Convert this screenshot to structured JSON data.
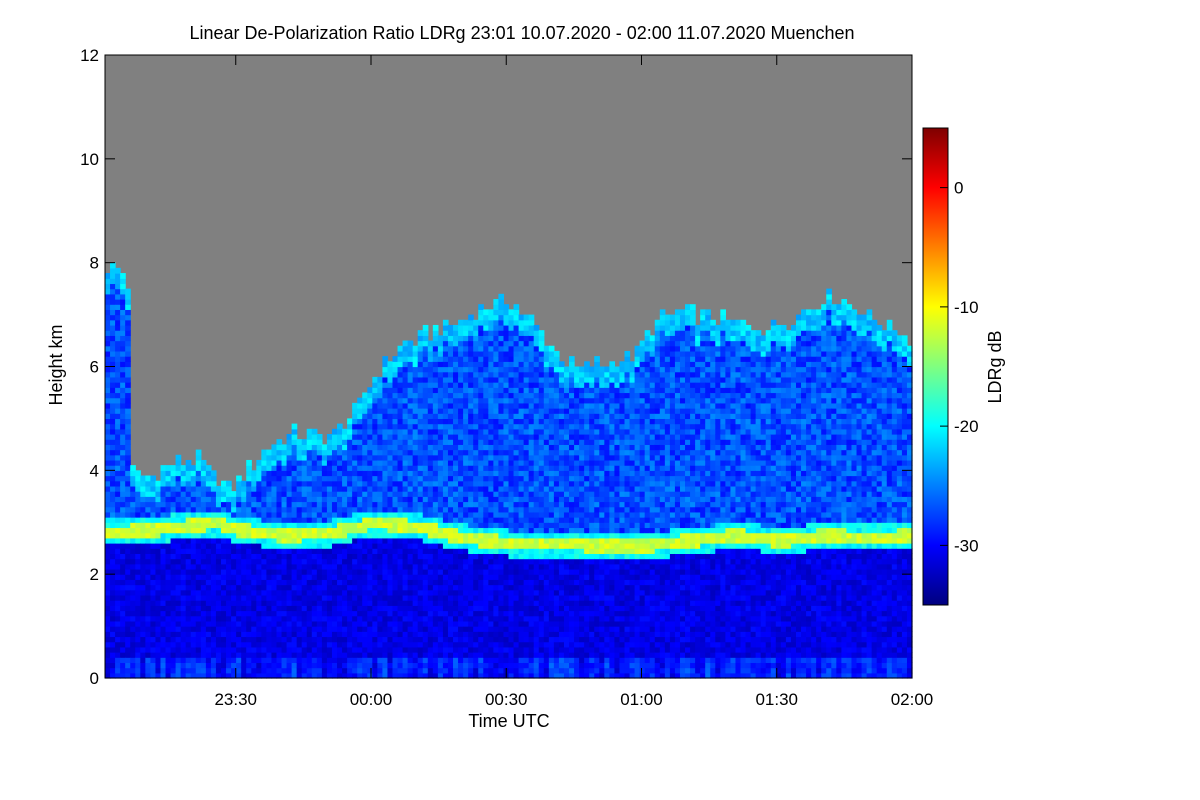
{
  "chart_data": {
    "type": "heatmap",
    "title": "Linear De-Polarization Ratio LDRg   23:01 10.07.2020 - 02:00 11.07.2020 Muenchen",
    "xlabel": "Time UTC",
    "ylabel": "Height km",
    "colorbar_label": "LDRg dB",
    "x_range": [
      "23:01",
      "02:00"
    ],
    "x_ticks": [
      "23:30",
      "00:00",
      "00:30",
      "01:00",
      "01:30",
      "02:00"
    ],
    "x_tick_minutes_from_start": [
      29,
      59,
      89,
      119,
      149,
      179
    ],
    "ylim": [
      0,
      12
    ],
    "y_ticks": [
      0,
      2,
      4,
      6,
      8,
      10,
      12
    ],
    "color_range": [
      -35,
      5
    ],
    "color_ticks": [
      0,
      -10,
      -20,
      -30
    ],
    "colormap": "jet",
    "no_signal_color": "#808080",
    "cloud_top_km": [
      [
        0,
        7.9
      ],
      [
        5,
        7.7
      ],
      [
        6,
        3.9
      ],
      [
        10,
        3.8
      ],
      [
        15,
        4.1
      ],
      [
        20,
        4.2
      ],
      [
        25,
        3.8
      ],
      [
        28,
        3.6
      ],
      [
        32,
        4.0
      ],
      [
        36,
        4.4
      ],
      [
        42,
        4.7
      ],
      [
        50,
        4.6
      ],
      [
        55,
        5.0
      ],
      [
        60,
        5.8
      ],
      [
        65,
        6.3
      ],
      [
        72,
        6.6
      ],
      [
        78,
        6.8
      ],
      [
        84,
        7.1
      ],
      [
        90,
        7.2
      ],
      [
        95,
        6.8
      ],
      [
        100,
        6.2
      ],
      [
        105,
        5.9
      ],
      [
        110,
        6.0
      ],
      [
        118,
        6.2
      ],
      [
        122,
        6.8
      ],
      [
        128,
        7.0
      ],
      [
        135,
        6.9
      ],
      [
        140,
        6.8
      ],
      [
        148,
        6.7
      ],
      [
        155,
        7.0
      ],
      [
        160,
        7.3
      ],
      [
        165,
        7.2
      ],
      [
        172,
        6.8
      ],
      [
        179,
        6.5
      ]
    ],
    "melting_layer_km": [
      [
        0,
        2.75
      ],
      [
        10,
        2.8
      ],
      [
        20,
        2.9
      ],
      [
        25,
        2.95
      ],
      [
        30,
        2.8
      ],
      [
        40,
        2.7
      ],
      [
        50,
        2.75
      ],
      [
        55,
        2.85
      ],
      [
        60,
        2.95
      ],
      [
        70,
        2.85
      ],
      [
        80,
        2.65
      ],
      [
        90,
        2.55
      ],
      [
        100,
        2.55
      ],
      [
        110,
        2.5
      ],
      [
        120,
        2.5
      ],
      [
        130,
        2.6
      ],
      [
        140,
        2.7
      ],
      [
        150,
        2.6
      ],
      [
        160,
        2.7
      ],
      [
        170,
        2.65
      ],
      [
        179,
        2.7
      ]
    ],
    "melting_layer_ldr_db": -12,
    "rain_ldr_db": -31,
    "ice_ldr_db": -27,
    "cloud_base_ldr_db": -22
  }
}
